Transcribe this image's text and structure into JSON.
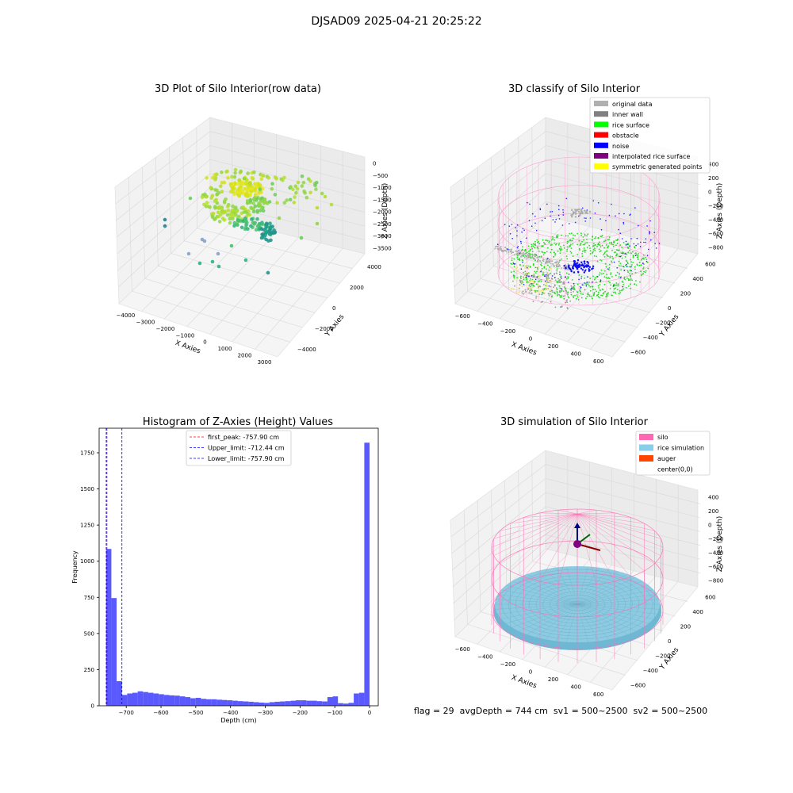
{
  "suptitle": "DJSAD09 2025-04-21 20:25:22",
  "footer_text": "flag = 29  avgDepth = 744 cm  sv1 = 500~2500  sv2 = 500~2500",
  "chart_data": [
    {
      "type": "scatter",
      "subtype": "3d",
      "title": "3D Plot of Silo Interior(row data)",
      "xlabel": "X Axies",
      "ylabel": "Y Axies",
      "zlabel": "Z Axies (Depth)",
      "xticks": [
        "−4000",
        "−3000",
        "−2000",
        "−1000",
        "0",
        "1000",
        "2000",
        "3000"
      ],
      "yticks": [
        "−4000",
        "−2000",
        "0",
        "2000",
        "4000"
      ],
      "zticks": [
        "0",
        "−500",
        "−1000",
        "−1500",
        "−2000",
        "−2500",
        "−3000",
        "−3500"
      ],
      "xlim": [
        -4500,
        3500
      ],
      "ylim": [
        -4500,
        4500
      ],
      "zlim": [
        -3800,
        200
      ],
      "colormap": "viridis",
      "grid": true
    },
    {
      "type": "scatter",
      "subtype": "3d",
      "title": "3D classify of Silo Interior",
      "xlabel": "X Axies",
      "ylabel": "Y Axies",
      "zlabel": "Z Axies (Depth)",
      "xticks": [
        "−600",
        "−400",
        "−200",
        "0",
        "200",
        "400",
        "600"
      ],
      "yticks": [
        "−600",
        "−400",
        "−200",
        "0",
        "200",
        "400",
        "600"
      ],
      "zticks": [
        "400",
        "200",
        "0",
        "−200",
        "−400",
        "−600",
        "−800"
      ],
      "legend_position": "top-right",
      "legend": [
        {
          "label": "original data",
          "color": "#b0b0b0"
        },
        {
          "label": "inner wall",
          "color": "#808080"
        },
        {
          "label": "rice surface",
          "color": "#00ff00"
        },
        {
          "label": "obstacle",
          "color": "#ff0000"
        },
        {
          "label": "noise",
          "color": "#0000ff"
        },
        {
          "label": "interpolated rice surface",
          "color": "#800080"
        },
        {
          "label": "symmetric generated points",
          "color": "#ffff00"
        }
      ],
      "grid": true
    },
    {
      "type": "bar",
      "subtype": "histogram",
      "title": "Histogram of Z-Axies (Height) Values",
      "xlabel": "Depth (cm)",
      "ylabel": "Frequency",
      "bar_color": "#5050ff",
      "xlim": [
        -778,
        25
      ],
      "ylim": [
        0,
        1920
      ],
      "xticks": [
        -700,
        -600,
        -500,
        -400,
        -300,
        -200,
        -100,
        0
      ],
      "xtick_labels": [
        "−700",
        "−600",
        "−500",
        "−400",
        "−300",
        "−200",
        "−100",
        "0"
      ],
      "yticks": [
        0,
        250,
        500,
        750,
        1000,
        1250,
        1500,
        1750
      ],
      "bin_start": -758,
      "bin_width": 15.16,
      "values": [
        1085,
        745,
        170,
        75,
        85,
        90,
        100,
        95,
        90,
        85,
        80,
        75,
        72,
        70,
        65,
        60,
        52,
        55,
        48,
        45,
        45,
        42,
        40,
        38,
        35,
        32,
        30,
        28,
        25,
        22,
        20,
        25,
        28,
        30,
        32,
        35,
        38,
        38,
        35,
        35,
        32,
        30,
        60,
        65,
        18,
        15,
        20,
        85,
        90,
        1820
      ],
      "vlines": [
        {
          "label": "first_peak: -757.90 cm",
          "x": -757.9,
          "color": "#ff0000"
        },
        {
          "label": "Upper_limit: -712.44 cm",
          "x": -712.44,
          "color": "#0000ff"
        },
        {
          "label": "Lower_limit: -757.90 cm",
          "x": -757.9,
          "color": "#0000ff"
        }
      ],
      "legend_position": "top-center",
      "grid": false
    },
    {
      "type": "surface",
      "subtype": "3d",
      "title": "3D simulation of Silo Interior",
      "xlabel": "X Axies",
      "ylabel": "Y Axies",
      "zlabel": "Z Axies (Depth)",
      "xticks": [
        "−600",
        "−400",
        "−200",
        "0",
        "200",
        "400",
        "600"
      ],
      "yticks": [
        "−600",
        "−400",
        "−200",
        "0",
        "200",
        "400",
        "600"
      ],
      "zticks": [
        "400",
        "200",
        "0",
        "−200",
        "−400",
        "−600",
        "−800"
      ],
      "legend_position": "top-right",
      "legend": [
        {
          "label": "silo",
          "color": "#ff69b4"
        },
        {
          "label": "rice simulation",
          "color": "#87ceeb"
        },
        {
          "label": "auger",
          "color": "#ff4500"
        },
        {
          "label": "center(0,0)",
          "color": "#ffffff"
        }
      ],
      "grid": true
    }
  ]
}
